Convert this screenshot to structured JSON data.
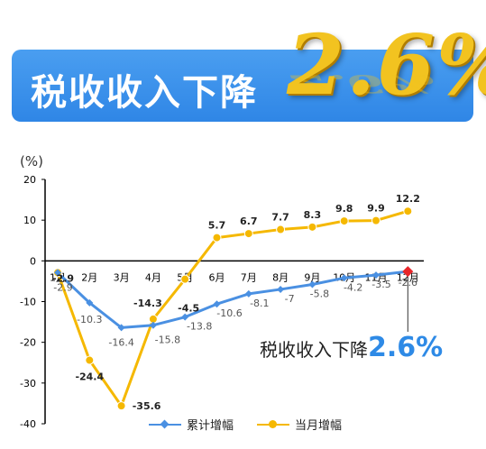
{
  "banner": {
    "text": "税收收入下降",
    "number": "2.6%"
  },
  "callout": {
    "text": "税收收入下降",
    "number": "2.6%"
  },
  "colors": {
    "cumulative": "#4a90e2",
    "monthly": "#f5b800",
    "highlight": "#e8262a",
    "banner": "#3a8fea"
  },
  "chart_data": {
    "type": "line",
    "unit_label": "(%)",
    "categories": [
      "1月",
      "2月",
      "3月",
      "4月",
      "5月",
      "6月",
      "7月",
      "8月",
      "9月",
      "10月",
      "11月",
      "12月"
    ],
    "ylim": [
      -40,
      20
    ],
    "yticks": [
      "20",
      "10",
      "0",
      "-10",
      "-20",
      "-30",
      "-40"
    ],
    "grid": false,
    "legend_position": "bottom",
    "series": [
      {
        "name": "累计增幅",
        "values": [
          -2.9,
          -10.3,
          -16.4,
          -15.8,
          -13.8,
          -10.6,
          -8.1,
          -7,
          -5.8,
          -4.2,
          -3.5,
          -2.6
        ],
        "labels": [
          "-2.9",
          "-10.3",
          "-16.4",
          "-15.8",
          "-13.8",
          "-10.6",
          "-8.1",
          "-7",
          "-5.8",
          "-4.2",
          "-3.5",
          "-2.6"
        ]
      },
      {
        "name": "当月增幅",
        "values": [
          -2.9,
          -24.4,
          -35.6,
          -14.3,
          -4.5,
          5.7,
          6.7,
          7.7,
          8.3,
          9.8,
          9.9,
          12.2
        ],
        "labels": [
          "-2.9",
          "-24.4",
          "-35.6",
          "-14.3",
          "-4.5",
          "5.7",
          "6.7",
          "7.7",
          "8.3",
          "9.8",
          "9.9",
          "12.2"
        ]
      }
    ]
  }
}
